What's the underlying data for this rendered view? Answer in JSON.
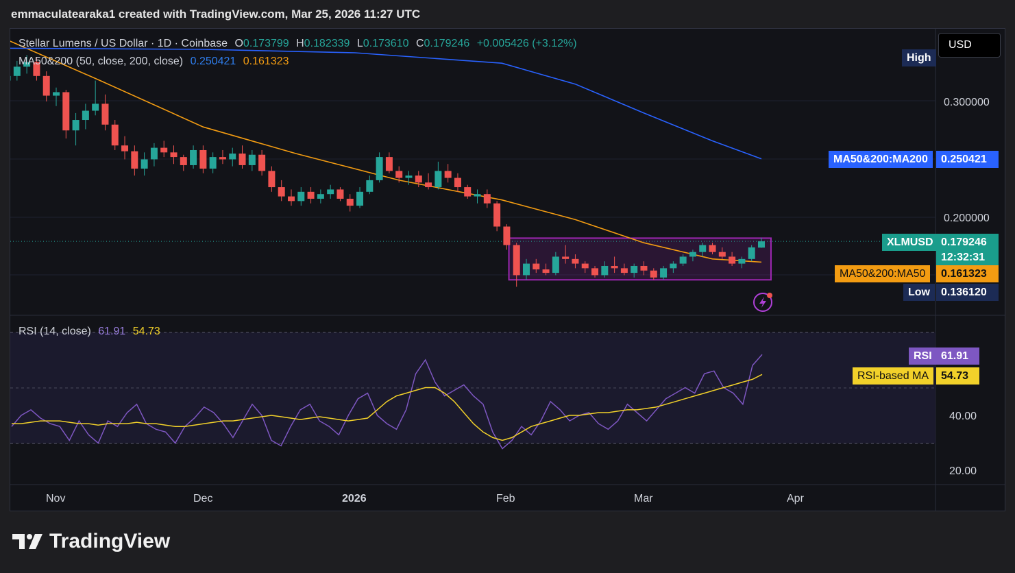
{
  "header": {
    "created_text": "emmaculatearaka1 created with TradingView.com, Mar 25, 2026 11:27 UTC"
  },
  "symbol_legend": {
    "name": "Stellar Lumens / US Dollar · 1D · Coinbase",
    "o_label": "O",
    "o_value": "0.173799",
    "h_label": "H",
    "h_value": "0.182339",
    "l_label": "L",
    "l_value": "0.173610",
    "c_label": "C",
    "c_value": "0.179246",
    "change": "+0.005426 (+3.12%)"
  },
  "ma_legend": {
    "name": "MA50&200 (50, close, 200, close)",
    "ma200_value": "0.250421",
    "ma50_value": "0.161323"
  },
  "rsi_legend": {
    "name": "RSI (14, close)",
    "rsi_value": "61.91",
    "rsi_ma_value": "54.73"
  },
  "currency_button": "USD",
  "price_axis_labels": [
    "0.300000",
    "0.200000"
  ],
  "rsi_axis_labels": [
    "40.00",
    "20.00"
  ],
  "time_axis_labels": [
    "Nov",
    "Dec",
    "2026",
    "Feb",
    "Mar",
    "Apr"
  ],
  "price_tags": {
    "high_label": "High",
    "ma200_label": "MA50&200:MA200",
    "ma200_value": "0.250421",
    "symbol_label": "XLMUSD",
    "symbol_value": "0.179246",
    "countdown": "12:32:31",
    "ma50_label": "MA50&200:MA50",
    "ma50_value": "0.161323",
    "low_label": "Low",
    "low_value": "0.136120"
  },
  "rsi_tags": {
    "rsi_label": "RSI",
    "rsi_value": "61.91",
    "rsi_ma_label": "RSI-based MA",
    "rsi_ma_value": "54.73"
  },
  "brand": {
    "name": "TradingView"
  },
  "colors": {
    "up": "#26a69a",
    "down": "#ef5350",
    "ma50": "#f39c12",
    "ma200": "#2962ff",
    "rsi": "#7e57c2",
    "rsi_ma": "#f2d12a",
    "highlight_box": "#9c27b0"
  },
  "chart_data": [
    {
      "type": "candlestick",
      "title": "Stellar Lumens / US Dollar · 1D · Coinbase",
      "x_range": [
        "2025-10-21",
        "2026-03-25"
      ],
      "ylim": [
        0.12,
        0.36
      ],
      "ohlc": [
        [
          "2025-10-22",
          0.318,
          0.327,
          0.31,
          0.322
        ],
        [
          "2025-10-24",
          0.322,
          0.335,
          0.318,
          0.33
        ],
        [
          "2025-10-26",
          0.33,
          0.34,
          0.324,
          0.334
        ],
        [
          "2025-10-28",
          0.334,
          0.338,
          0.318,
          0.322
        ],
        [
          "2025-10-30",
          0.322,
          0.326,
          0.3,
          0.305
        ],
        [
          "2025-11-01",
          0.305,
          0.312,
          0.296,
          0.308
        ],
        [
          "2025-11-03",
          0.308,
          0.31,
          0.268,
          0.275
        ],
        [
          "2025-11-05",
          0.275,
          0.29,
          0.262,
          0.284
        ],
        [
          "2025-11-07",
          0.284,
          0.298,
          0.276,
          0.292
        ],
        [
          "2025-11-09",
          0.292,
          0.318,
          0.288,
          0.298
        ],
        [
          "2025-11-11",
          0.298,
          0.306,
          0.275,
          0.28
        ],
        [
          "2025-11-13",
          0.28,
          0.284,
          0.258,
          0.262
        ],
        [
          "2025-11-15",
          0.262,
          0.27,
          0.25,
          0.257
        ],
        [
          "2025-11-17",
          0.257,
          0.262,
          0.236,
          0.242
        ],
        [
          "2025-11-19",
          0.242,
          0.256,
          0.236,
          0.25
        ],
        [
          "2025-11-21",
          0.25,
          0.264,
          0.244,
          0.26
        ],
        [
          "2025-11-23",
          0.26,
          0.266,
          0.252,
          0.256
        ],
        [
          "2025-11-25",
          0.256,
          0.262,
          0.246,
          0.252
        ],
        [
          "2025-11-27",
          0.252,
          0.254,
          0.24,
          0.245
        ],
        [
          "2025-11-29",
          0.245,
          0.262,
          0.242,
          0.258
        ],
        [
          "2025-12-01",
          0.258,
          0.262,
          0.238,
          0.242
        ],
        [
          "2025-12-03",
          0.242,
          0.256,
          0.238,
          0.252
        ],
        [
          "2025-12-05",
          0.252,
          0.258,
          0.246,
          0.25
        ],
        [
          "2025-12-07",
          0.25,
          0.26,
          0.244,
          0.255
        ],
        [
          "2025-12-09",
          0.255,
          0.262,
          0.242,
          0.245
        ],
        [
          "2025-12-11",
          0.245,
          0.258,
          0.24,
          0.254
        ],
        [
          "2025-12-13",
          0.254,
          0.258,
          0.236,
          0.24
        ],
        [
          "2025-12-15",
          0.24,
          0.244,
          0.222,
          0.226
        ],
        [
          "2025-12-17",
          0.226,
          0.232,
          0.214,
          0.218
        ],
        [
          "2025-12-19",
          0.218,
          0.224,
          0.21,
          0.214
        ],
        [
          "2025-12-21",
          0.214,
          0.226,
          0.21,
          0.222
        ],
        [
          "2025-12-23",
          0.222,
          0.226,
          0.212,
          0.216
        ],
        [
          "2025-12-25",
          0.216,
          0.224,
          0.212,
          0.22
        ],
        [
          "2025-12-27",
          0.22,
          0.228,
          0.216,
          0.224
        ],
        [
          "2025-12-29",
          0.224,
          0.226,
          0.214,
          0.216
        ],
        [
          "2025-12-31",
          0.216,
          0.22,
          0.205,
          0.21
        ],
        [
          "2026-01-02",
          0.21,
          0.226,
          0.208,
          0.222
        ],
        [
          "2026-01-04",
          0.222,
          0.236,
          0.22,
          0.232
        ],
        [
          "2026-01-06",
          0.232,
          0.256,
          0.23,
          0.252
        ],
        [
          "2026-01-08",
          0.252,
          0.256,
          0.238,
          0.24
        ],
        [
          "2026-01-10",
          0.24,
          0.244,
          0.23,
          0.234
        ],
        [
          "2026-01-12",
          0.234,
          0.24,
          0.228,
          0.236
        ],
        [
          "2026-01-14",
          0.236,
          0.24,
          0.226,
          0.23
        ],
        [
          "2026-01-16",
          0.23,
          0.238,
          0.224,
          0.226
        ],
        [
          "2026-01-18",
          0.226,
          0.248,
          0.224,
          0.24
        ],
        [
          "2026-01-20",
          0.24,
          0.246,
          0.23,
          0.234
        ],
        [
          "2026-01-22",
          0.234,
          0.238,
          0.222,
          0.226
        ],
        [
          "2026-01-24",
          0.226,
          0.228,
          0.216,
          0.218
        ],
        [
          "2026-01-26",
          0.218,
          0.224,
          0.212,
          0.22
        ],
        [
          "2026-01-28",
          0.22,
          0.224,
          0.208,
          0.212
        ],
        [
          "2026-01-30",
          0.212,
          0.214,
          0.188,
          0.192
        ],
        [
          "2026-02-01",
          0.192,
          0.194,
          0.172,
          0.176
        ],
        [
          "2026-02-03",
          0.176,
          0.178,
          0.14,
          0.15
        ],
        [
          "2026-02-05",
          0.15,
          0.164,
          0.146,
          0.16
        ],
        [
          "2026-02-07",
          0.16,
          0.164,
          0.152,
          0.155
        ],
        [
          "2026-02-09",
          0.155,
          0.16,
          0.15,
          0.152
        ],
        [
          "2026-02-11",
          0.152,
          0.17,
          0.15,
          0.166
        ],
        [
          "2026-02-13",
          0.166,
          0.176,
          0.16,
          0.164
        ],
        [
          "2026-02-15",
          0.164,
          0.168,
          0.156,
          0.16
        ],
        [
          "2026-02-17",
          0.16,
          0.162,
          0.152,
          0.156
        ],
        [
          "2026-02-19",
          0.156,
          0.158,
          0.148,
          0.15
        ],
        [
          "2026-02-21",
          0.15,
          0.162,
          0.148,
          0.158
        ],
        [
          "2026-02-23",
          0.158,
          0.166,
          0.152,
          0.156
        ],
        [
          "2026-02-25",
          0.156,
          0.16,
          0.15,
          0.152
        ],
        [
          "2026-02-27",
          0.152,
          0.16,
          0.148,
          0.158
        ],
        [
          "2026-03-01",
          0.158,
          0.162,
          0.15,
          0.154
        ],
        [
          "2026-03-03",
          0.154,
          0.156,
          0.146,
          0.148
        ],
        [
          "2026-03-05",
          0.148,
          0.158,
          0.146,
          0.156
        ],
        [
          "2026-03-07",
          0.156,
          0.162,
          0.152,
          0.16
        ],
        [
          "2026-03-09",
          0.16,
          0.168,
          0.158,
          0.166
        ],
        [
          "2026-03-11",
          0.166,
          0.172,
          0.162,
          0.17
        ],
        [
          "2026-03-13",
          0.17,
          0.178,
          0.166,
          0.176
        ],
        [
          "2026-03-15",
          0.176,
          0.178,
          0.168,
          0.17
        ],
        [
          "2026-03-17",
          0.17,
          0.174,
          0.164,
          0.166
        ],
        [
          "2026-03-19",
          0.166,
          0.17,
          0.158,
          0.16
        ],
        [
          "2026-03-21",
          0.16,
          0.166,
          0.156,
          0.164
        ],
        [
          "2026-03-23",
          0.164,
          0.176,
          0.162,
          0.174
        ],
        [
          "2026-03-25",
          0.173799,
          0.182339,
          0.17361,
          0.179246
        ]
      ],
      "series": [
        {
          "name": "MA50",
          "points": [
            [
              "2025-10-21",
              0.355
            ],
            [
              "2025-11-10",
              0.318
            ],
            [
              "2025-12-01",
              0.278
            ],
            [
              "2025-12-20",
              0.255
            ],
            [
              "2026-01-10",
              0.232
            ],
            [
              "2026-01-31",
              0.215
            ],
            [
              "2026-02-15",
              0.198
            ],
            [
              "2026-03-01",
              0.178
            ],
            [
              "2026-03-15",
              0.164
            ],
            [
              "2026-03-25",
              0.161323
            ]
          ]
        },
        {
          "name": "MA200",
          "points": [
            [
              "2025-10-21",
              0.346
            ],
            [
              "2025-12-01",
              0.345
            ],
            [
              "2026-01-01",
              0.342
            ],
            [
              "2026-01-31",
              0.333
            ],
            [
              "2026-02-15",
              0.315
            ],
            [
              "2026-03-01",
              0.29
            ],
            [
              "2026-03-15",
              0.266
            ],
            [
              "2026-03-25",
              0.250421
            ]
          ]
        }
      ],
      "highlight_box": {
        "x": [
          "2026-02-02",
          "2026-03-25"
        ],
        "y": [
          0.146,
          0.182
        ]
      },
      "current_price": 0.179246
    },
    {
      "type": "line",
      "title": "RSI (14, close)",
      "ylim": [
        12,
        62
      ],
      "bands": [
        30,
        50
      ],
      "series": [
        {
          "name": "RSI",
          "values": [
            36,
            40,
            42,
            39,
            37,
            36,
            31,
            38,
            33,
            30,
            38,
            36,
            41,
            44,
            37,
            35,
            34,
            30,
            36,
            39,
            43,
            41,
            37,
            32,
            38,
            44,
            40,
            31,
            29,
            36,
            42,
            44,
            38,
            36,
            33,
            40,
            46,
            48,
            40,
            37,
            35,
            42,
            55,
            60,
            52,
            47,
            49,
            51,
            47,
            44,
            34,
            28,
            31,
            36,
            33,
            38,
            45,
            42,
            38,
            40,
            41,
            37,
            35,
            38,
            44,
            41,
            38,
            42,
            46,
            48,
            50,
            48,
            55,
            56,
            50,
            48,
            44,
            58,
            61.91
          ]
        },
        {
          "name": "RSI-based MA",
          "values": [
            37,
            37,
            37.5,
            38,
            38,
            38,
            37.5,
            37,
            37,
            36.5,
            37,
            37,
            37,
            37.5,
            37,
            37,
            36.5,
            36,
            36,
            36.5,
            37,
            37.5,
            38,
            38,
            38.5,
            39,
            39.5,
            40,
            39.5,
            39,
            38.5,
            39,
            39.5,
            39,
            38.5,
            38,
            38.5,
            39,
            42,
            45,
            47,
            48,
            49,
            50,
            50,
            48,
            45,
            41,
            37,
            34,
            32,
            31,
            32,
            34,
            36,
            37,
            38,
            39,
            40,
            40,
            40.5,
            41,
            41,
            41.5,
            42,
            42,
            42.5,
            43,
            44,
            45,
            46,
            47,
            48,
            49,
            50,
            51,
            52,
            53,
            54.73
          ]
        }
      ]
    }
  ]
}
